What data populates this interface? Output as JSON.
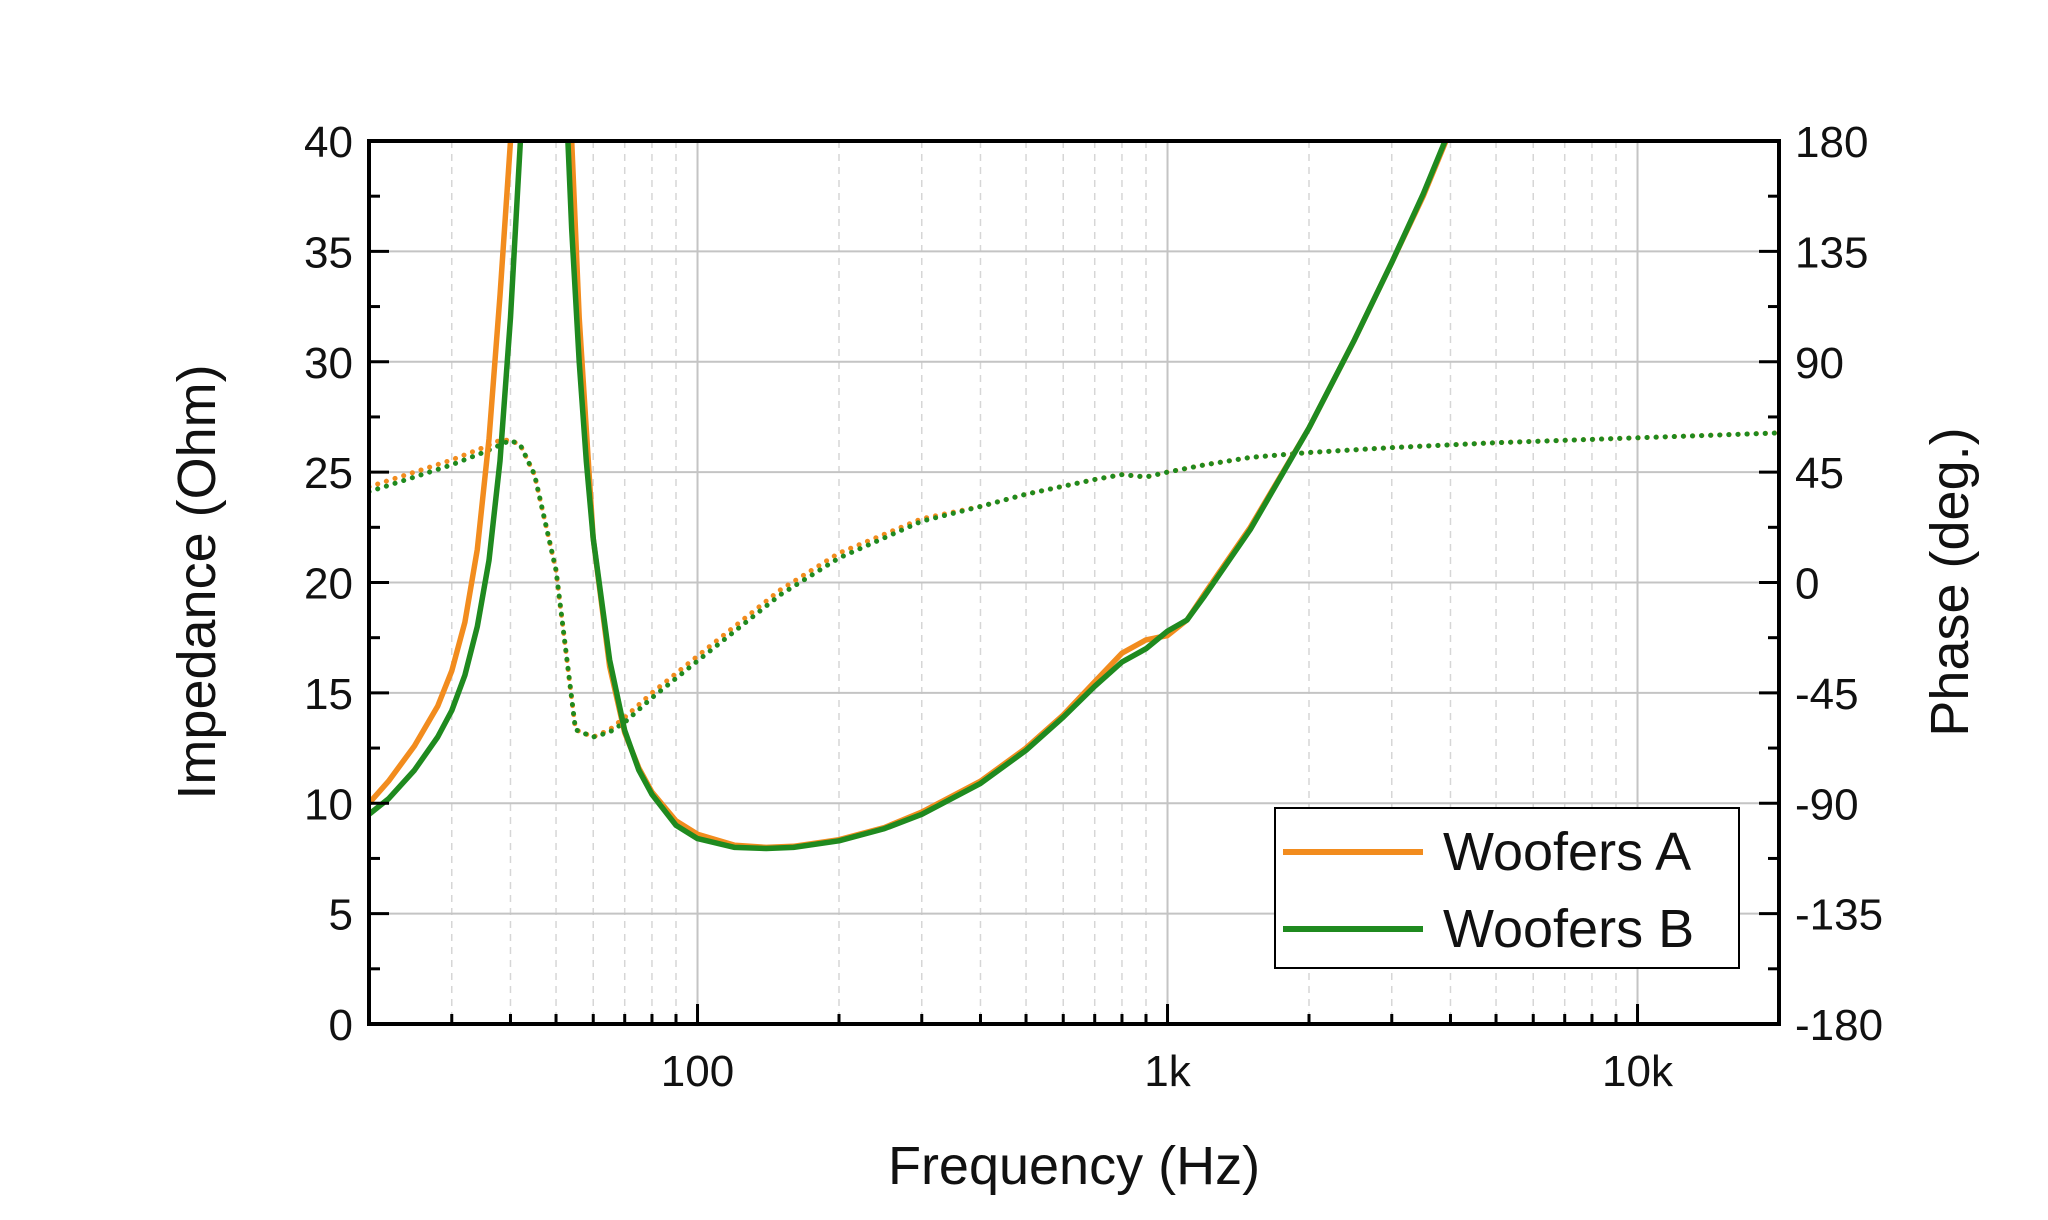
{
  "chart_data": {
    "type": "line",
    "x_scale": "log",
    "xlabel": "Frequency (Hz)",
    "ylabel_left": "Impedance (Ohm)",
    "ylabel_right": "Phase (deg.)",
    "xlim": [
      20,
      20000
    ],
    "ylim_left": [
      0,
      40
    ],
    "ylim_right": [
      -180,
      180
    ],
    "x_ticks": [
      {
        "value": 100,
        "label": "100"
      },
      {
        "value": 1000,
        "label": "1k"
      },
      {
        "value": 10000,
        "label": "10k"
      }
    ],
    "y_left_ticks": [
      {
        "value": 0,
        "label": "0"
      },
      {
        "value": 5,
        "label": "5"
      },
      {
        "value": 10,
        "label": "10"
      },
      {
        "value": 15,
        "label": "15"
      },
      {
        "value": 20,
        "label": "20"
      },
      {
        "value": 25,
        "label": "25"
      },
      {
        "value": 30,
        "label": "30"
      },
      {
        "value": 35,
        "label": "35"
      },
      {
        "value": 40,
        "label": "40"
      }
    ],
    "y_right_ticks": [
      {
        "value": -180,
        "label": "-180"
      },
      {
        "value": -135,
        "label": "-135"
      },
      {
        "value": -90,
        "label": "-90"
      },
      {
        "value": -45,
        "label": "-45"
      },
      {
        "value": 0,
        "label": "0"
      },
      {
        "value": 45,
        "label": "45"
      },
      {
        "value": 90,
        "label": "90"
      },
      {
        "value": 135,
        "label": "135"
      },
      {
        "value": 180,
        "label": "180"
      }
    ],
    "grid": true,
    "legend_position": "bottom-right",
    "series": [
      {
        "name": "Woofers A",
        "color": "#F28C1E",
        "impedance": {
          "x": [
            20,
            22,
            25,
            28,
            30,
            32,
            34,
            36,
            38,
            40,
            41,
            42,
            53,
            54,
            56,
            60,
            65,
            70,
            75,
            80,
            90,
            100,
            120,
            140,
            160,
            200,
            250,
            300,
            400,
            500,
            600,
            700,
            800,
            900,
            1000,
            1100,
            1200,
            1500,
            2000,
            2500,
            3000,
            3500,
            4000
          ],
          "y": [
            10.0,
            11.0,
            12.6,
            14.4,
            16.0,
            18.2,
            21.5,
            26.5,
            33.0,
            40.0,
            42.0,
            42.0,
            42.0,
            40.0,
            32.0,
            22.0,
            16.2,
            13.2,
            11.6,
            10.5,
            9.2,
            8.6,
            8.1,
            8.0,
            8.05,
            8.35,
            8.9,
            9.6,
            11.0,
            12.5,
            14.0,
            15.5,
            16.8,
            17.4,
            17.6,
            18.3,
            19.5,
            22.5,
            27.0,
            31.0,
            34.5,
            37.5,
            40.5
          ]
        },
        "phase": {
          "x": [
            20,
            25,
            30,
            35,
            38,
            40,
            42,
            45,
            50,
            55,
            60,
            65,
            70,
            80,
            100,
            150,
            200,
            300,
            400,
            500,
            700,
            800,
            900,
            1000,
            1200,
            1500,
            2000,
            3000,
            5000,
            10000,
            20000
          ],
          "y": [
            39,
            45,
            50,
            55,
            58,
            58,
            56,
            44,
            5,
            -60,
            -63,
            -60,
            -55,
            -45,
            -30,
            -3,
            12,
            26,
            31,
            36,
            42,
            44,
            43,
            45,
            48,
            51,
            53,
            55,
            57,
            59,
            61
          ]
        }
      },
      {
        "name": "Woofers B",
        "color": "#1F8A1F",
        "impedance": {
          "x": [
            20,
            22,
            25,
            28,
            30,
            32,
            34,
            36,
            38,
            40,
            42,
            43,
            52,
            53,
            54,
            56,
            58,
            60,
            65,
            70,
            75,
            80,
            90,
            100,
            120,
            140,
            160,
            200,
            250,
            300,
            400,
            500,
            600,
            700,
            800,
            900,
            1000,
            1100,
            1200,
            1500,
            2000,
            2500,
            3000,
            3500,
            4000
          ],
          "y": [
            9.5,
            10.2,
            11.5,
            13.0,
            14.2,
            15.8,
            18.0,
            21.0,
            25.5,
            32.0,
            40.0,
            42.0,
            42.0,
            40.0,
            36.0,
            30.0,
            25.5,
            22.0,
            16.5,
            13.3,
            11.5,
            10.4,
            9.0,
            8.4,
            8.0,
            7.95,
            8.0,
            8.3,
            8.85,
            9.5,
            10.9,
            12.4,
            13.9,
            15.3,
            16.4,
            17.0,
            17.8,
            18.3,
            19.4,
            22.4,
            27.0,
            31.0,
            34.5,
            37.6,
            40.6
          ]
        },
        "phase": {
          "x": [
            20,
            25,
            30,
            35,
            38,
            40,
            42,
            45,
            50,
            55,
            60,
            65,
            70,
            80,
            100,
            150,
            200,
            300,
            400,
            500,
            700,
            800,
            900,
            1000,
            1200,
            1500,
            2000,
            3000,
            5000,
            10000,
            20000
          ],
          "y": [
            37,
            43,
            48,
            53,
            56,
            58,
            56,
            44,
            5,
            -60,
            -63,
            -61,
            -57,
            -47,
            -32,
            -5,
            10,
            25,
            31,
            36,
            42,
            44,
            43,
            45,
            48,
            51,
            53,
            55,
            57,
            59,
            61
          ]
        }
      }
    ]
  }
}
